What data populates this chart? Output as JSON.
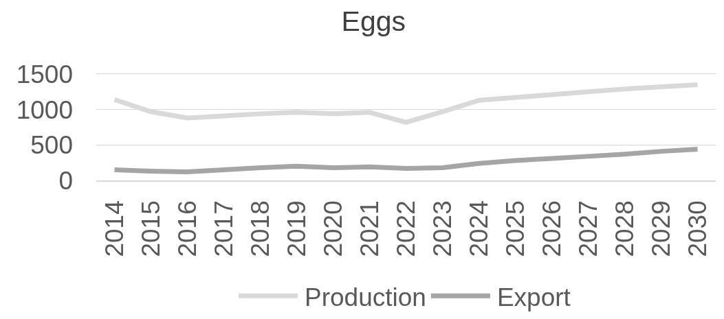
{
  "chart_data": {
    "type": "line",
    "title": "Eggs",
    "categories": [
      "2014",
      "2015",
      "2016",
      "2017",
      "2018",
      "2019",
      "2020",
      "2021",
      "2022",
      "2023",
      "2024",
      "2025",
      "2026",
      "2027",
      "2028",
      "2029",
      "2030"
    ],
    "series": [
      {
        "name": "Production",
        "color": "#d9d9d9",
        "values": [
          1140,
          970,
          880,
          910,
          940,
          960,
          940,
          960,
          820,
          970,
          1130,
          1170,
          1210,
          1250,
          1290,
          1320,
          1350
        ]
      },
      {
        "name": "Export",
        "color": "#a5a5a5",
        "values": [
          150,
          130,
          120,
          150,
          180,
          200,
          180,
          190,
          170,
          180,
          240,
          280,
          310,
          340,
          370,
          410,
          440
        ]
      }
    ],
    "ylim": [
      0,
      1500
    ],
    "yticks": [
      0,
      500,
      1000,
      1500
    ],
    "grid": "y",
    "legend": "bottom",
    "marker": "none",
    "line_style": "solid"
  }
}
